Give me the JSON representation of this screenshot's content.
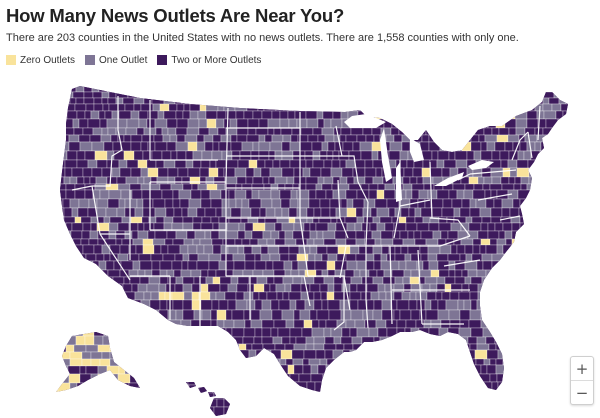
{
  "header": {
    "title": "How Many News Outlets Are Near You?",
    "subtitle": "There are 203 counties in the United States with no news outlets. There are 1,558 counties with only one."
  },
  "legend": {
    "items": [
      {
        "label": "Zero Outlets",
        "color": "#f9e39b"
      },
      {
        "label": "One Outlet",
        "color": "#7e7595"
      },
      {
        "label": "Two or More Outlets",
        "color": "#3d1a5c"
      }
    ]
  },
  "map": {
    "background_color": "#ffffff",
    "state_border_color": "#ffffff",
    "category_colors": {
      "zero": "#f9e39b",
      "one": "#7e7595",
      "two_plus": "#3d1a5c"
    }
  },
  "controls": {
    "zoom_in_label": "+",
    "zoom_out_label": "−"
  }
}
